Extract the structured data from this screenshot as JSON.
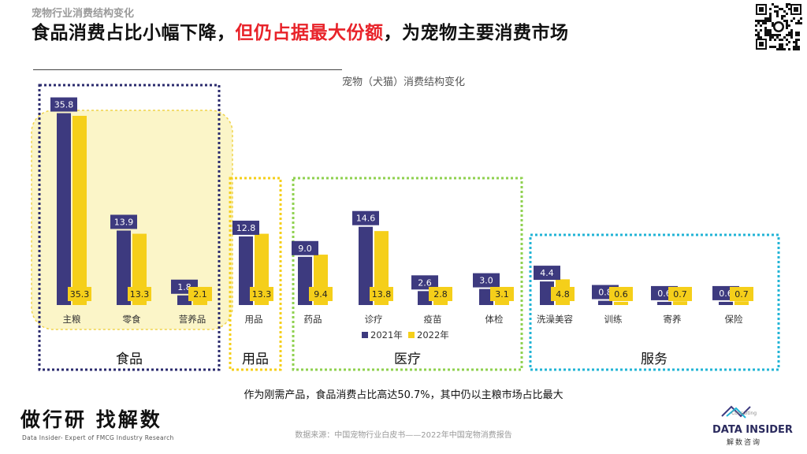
{
  "header": {
    "subtitle": "宠物行业消费结构变化",
    "headline_part1": "食品消费占比小幅下降，",
    "headline_highlight": "但仍占据最大份额",
    "headline_part2": "，为宠物主要消费市场"
  },
  "chart_data": {
    "type": "bar",
    "title": "宠物（犬猫）消费结构变化",
    "categories": [
      "主粮",
      "零食",
      "营养品",
      "用品",
      "药品",
      "诊疗",
      "疫苗",
      "体检",
      "洗澡美容",
      "训练",
      "寄养",
      "保险"
    ],
    "series": [
      {
        "name": "2021年",
        "color": "#3d3a7f",
        "values": [
          35.8,
          13.9,
          1.8,
          12.8,
          9.0,
          14.6,
          2.6,
          3.0,
          4.4,
          0.8,
          0.6,
          0.6
        ]
      },
      {
        "name": "2022年",
        "color": "#f5cf1a",
        "values": [
          35.3,
          13.3,
          2.1,
          13.3,
          9.4,
          13.8,
          2.8,
          3.1,
          4.8,
          0.6,
          0.7,
          0.7
        ]
      }
    ],
    "groups": [
      {
        "label": "食品",
        "categories": [
          "主粮",
          "零食",
          "营养品"
        ]
      },
      {
        "label": "用品",
        "categories": [
          "用品"
        ]
      },
      {
        "label": "医疗",
        "categories": [
          "药品",
          "诊疗",
          "疫苗",
          "体检"
        ]
      },
      {
        "label": "服务",
        "categories": [
          "洗澡美容",
          "训练",
          "寄养",
          "保险"
        ]
      }
    ],
    "ylim": [
      0,
      40
    ],
    "legend_position": "bottom-center",
    "grid": false
  },
  "colors": {
    "series_2021": "#3d3a7f",
    "series_2022": "#f5cf1a",
    "highlight_text": "#e8232a",
    "food_box": "#2b2b6e",
    "food_highlight_fill": "#fbf5c8",
    "supplies_box": "#f5cf1a",
    "medical_box": "#8fd14f",
    "service_box": "#22b4d6"
  },
  "footnote": "作为刚需产品，食品消费占比高达50.7%，其中仍以主粮市场占比最大",
  "source": "数据来源：中国宠物行业白皮书——2022年中国宠物消费报告",
  "brand": {
    "name_cn": "做行研 找解数",
    "tagline": "Data Insider- Expert of FMCG Industry Research",
    "logo_name": "DATA INSIDER",
    "logo_small": "Consulting",
    "logo_cn": "解数咨询"
  },
  "icons": {
    "qr": "qr-code-icon",
    "logo": "data-insider-logo-icon"
  }
}
